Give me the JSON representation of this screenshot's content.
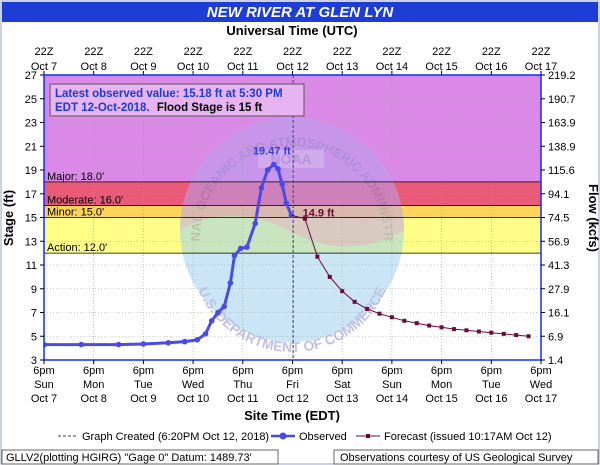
{
  "header": {
    "title": "NEW RIVER AT GLEN LYN",
    "top_axis_title": "Universal Time (UTC)"
  },
  "info_box": {
    "line1": "Latest observed value: 15.18 ft at 5:30 PM",
    "line2_date": "EDT 12-Oct-2018.",
    "line2_flood": "Flood Stage is 15 ft"
  },
  "axes": {
    "y_left_title": "Stage (ft)",
    "y_right_title": "Flow (kcfs)",
    "x_bottom_title": "Site Time (EDT)"
  },
  "footer": {
    "left": "GLLV2(plotting HGIRG) \"Gage 0\" Datum: 1489.73'",
    "right": "Observations courtesy of US Geological Survey"
  },
  "legend": {
    "graph_created": "Graph Created (6:20PM Oct 12, 2018)",
    "observed": "Observed",
    "forecast": "Forecast (issued 10:17AM Oct 12)"
  },
  "watermark": {
    "top_text": "NATIONAL OCEANIC AND ATMOSPHERIC ADMINISTRATION",
    "bottom_text": "U.S. DEPARTMENT OF COMMERCE",
    "center_text": "NOAA"
  },
  "colors": {
    "record_band": "#da8ae6",
    "major_band": "#e85a78",
    "moderate_band": "#ff7a4a",
    "minor_band": "#ffd45a",
    "action_band": "#ffff88",
    "observed": "#4a4ae8",
    "forecast": "#6a0a3a",
    "border": "#0f2cff",
    "title_bg": "#1e3cd6",
    "info_text": "#1a3cd6",
    "peak_label": "#3a3ae0",
    "forecast_label": "#6a0a3a"
  },
  "chart_data": {
    "type": "line",
    "title": "NEW RIVER AT GLEN LYN",
    "xlabel": "Site Time (EDT)",
    "ylabel": "Stage (ft)",
    "ylabel_right": "Flow (kcfs)",
    "ylim": [
      3,
      27
    ],
    "xlim": [
      "2018-10-07 18:00",
      "2018-10-17 18:00"
    ],
    "y_ticks": [
      3,
      5,
      7,
      9,
      11,
      13,
      15,
      17,
      19,
      21,
      23,
      25,
      27
    ],
    "y_right_ticks": [
      "1.4",
      "6.9",
      "16.1",
      "27.9",
      "41.3",
      "56.9",
      "74.5",
      "94.1",
      "115.6",
      "138.9",
      "163.9",
      "190.7",
      "219.2"
    ],
    "x_bottom_ticks": [
      {
        "t": "2018-10-07 18:00",
        "l1": "6pm",
        "l2": "Sun",
        "l3": "Oct 7"
      },
      {
        "t": "2018-10-08 18:00",
        "l1": "6pm",
        "l2": "Mon",
        "l3": "Oct 8"
      },
      {
        "t": "2018-10-09 18:00",
        "l1": "6pm",
        "l2": "Tue",
        "l3": "Oct 9"
      },
      {
        "t": "2018-10-10 18:00",
        "l1": "6pm",
        "l2": "Wed",
        "l3": "Oct 10"
      },
      {
        "t": "2018-10-11 18:00",
        "l1": "6pm",
        "l2": "Thu",
        "l3": "Oct 11"
      },
      {
        "t": "2018-10-12 18:00",
        "l1": "6pm",
        "l2": "Fri",
        "l3": "Oct 12"
      },
      {
        "t": "2018-10-13 18:00",
        "l1": "6pm",
        "l2": "Sat",
        "l3": "Oct 13"
      },
      {
        "t": "2018-10-14 18:00",
        "l1": "6pm",
        "l2": "Sun",
        "l3": "Oct 14"
      },
      {
        "t": "2018-10-15 18:00",
        "l1": "6pm",
        "l2": "Mon",
        "l3": "Oct 15"
      },
      {
        "t": "2018-10-16 18:00",
        "l1": "6pm",
        "l2": "Tue",
        "l3": "Oct 16"
      },
      {
        "t": "2018-10-17 18:00",
        "l1": "6pm",
        "l2": "Wed",
        "l3": "Oct 17"
      }
    ],
    "x_top_ticks": [
      {
        "t": "2018-10-07 18:00",
        "l1": "22Z",
        "l2": "Oct 7"
      },
      {
        "t": "2018-10-08 18:00",
        "l1": "22Z",
        "l2": "Oct 8"
      },
      {
        "t": "2018-10-09 18:00",
        "l1": "22Z",
        "l2": "Oct 9"
      },
      {
        "t": "2018-10-10 18:00",
        "l1": "22Z",
        "l2": "Oct 10"
      },
      {
        "t": "2018-10-11 18:00",
        "l1": "22Z",
        "l2": "Oct 11"
      },
      {
        "t": "2018-10-12 18:00",
        "l1": "22Z",
        "l2": "Oct 12"
      },
      {
        "t": "2018-10-13 18:00",
        "l1": "22Z",
        "l2": "Oct 13"
      },
      {
        "t": "2018-10-14 18:00",
        "l1": "22Z",
        "l2": "Oct 14"
      },
      {
        "t": "2018-10-15 18:00",
        "l1": "22Z",
        "l2": "Oct 15"
      },
      {
        "t": "2018-10-16 18:00",
        "l1": "22Z",
        "l2": "Oct 16"
      },
      {
        "t": "2018-10-17 18:00",
        "l1": "22Z",
        "l2": "Oct 17"
      }
    ],
    "thresholds": [
      {
        "name": "Major",
        "value": 18.0,
        "label": "Major: 18.0'"
      },
      {
        "name": "Moderate",
        "value": 16.0,
        "label": "Moderate: 16.0'"
      },
      {
        "name": "Minor",
        "value": 15.0,
        "label": "Minor: 15.0'"
      },
      {
        "name": "Action",
        "value": 12.0,
        "label": "Action: 12.0'"
      }
    ],
    "graph_created_time": "2018-10-12 18:20",
    "annotations": [
      {
        "label": "19.47 ft",
        "t": "2018-10-12 09:00",
        "y": 19.47,
        "series": "Observed"
      },
      {
        "label": "14.9 ft",
        "t": "2018-10-12 20:00",
        "y": 14.9,
        "series": "Forecast"
      }
    ],
    "series": [
      {
        "name": "Observed",
        "points": [
          {
            "t": "2018-10-07 18:00",
            "y": 4.3
          },
          {
            "t": "2018-10-08 12:00",
            "y": 4.3
          },
          {
            "t": "2018-10-09 06:00",
            "y": 4.3
          },
          {
            "t": "2018-10-09 18:00",
            "y": 4.35
          },
          {
            "t": "2018-10-10 06:00",
            "y": 4.45
          },
          {
            "t": "2018-10-10 14:00",
            "y": 4.55
          },
          {
            "t": "2018-10-10 20:00",
            "y": 4.7
          },
          {
            "t": "2018-10-11 00:00",
            "y": 5.2
          },
          {
            "t": "2018-10-11 03:00",
            "y": 6.3
          },
          {
            "t": "2018-10-11 06:00",
            "y": 7.0
          },
          {
            "t": "2018-10-11 09:00",
            "y": 7.5
          },
          {
            "t": "2018-10-11 12:00",
            "y": 9.5
          },
          {
            "t": "2018-10-11 14:00",
            "y": 11.8
          },
          {
            "t": "2018-10-11 17:00",
            "y": 12.4
          },
          {
            "t": "2018-10-11 20:00",
            "y": 12.5
          },
          {
            "t": "2018-10-12 00:00",
            "y": 14.5
          },
          {
            "t": "2018-10-12 03:00",
            "y": 17.5
          },
          {
            "t": "2018-10-12 06:00",
            "y": 19.0
          },
          {
            "t": "2018-10-12 09:00",
            "y": 19.47
          },
          {
            "t": "2018-10-12 11:00",
            "y": 19.1
          },
          {
            "t": "2018-10-12 13:00",
            "y": 17.8
          },
          {
            "t": "2018-10-12 15:00",
            "y": 16.2
          },
          {
            "t": "2018-10-12 17:30",
            "y": 15.18
          }
        ]
      },
      {
        "name": "Forecast",
        "points": [
          {
            "t": "2018-10-12 17:30",
            "y": 15.18
          },
          {
            "t": "2018-10-13 00:00",
            "y": 14.9
          },
          {
            "t": "2018-10-13 06:00",
            "y": 11.7
          },
          {
            "t": "2018-10-13 12:00",
            "y": 10.0
          },
          {
            "t": "2018-10-13 18:00",
            "y": 8.8
          },
          {
            "t": "2018-10-14 00:00",
            "y": 7.9
          },
          {
            "t": "2018-10-14 06:00",
            "y": 7.3
          },
          {
            "t": "2018-10-14 12:00",
            "y": 6.9
          },
          {
            "t": "2018-10-14 18:00",
            "y": 6.6
          },
          {
            "t": "2018-10-15 00:00",
            "y": 6.3
          },
          {
            "t": "2018-10-15 06:00",
            "y": 6.1
          },
          {
            "t": "2018-10-15 12:00",
            "y": 5.9
          },
          {
            "t": "2018-10-15 18:00",
            "y": 5.75
          },
          {
            "t": "2018-10-16 00:00",
            "y": 5.6
          },
          {
            "t": "2018-10-16 06:00",
            "y": 5.5
          },
          {
            "t": "2018-10-16 12:00",
            "y": 5.4
          },
          {
            "t": "2018-10-16 18:00",
            "y": 5.3
          },
          {
            "t": "2018-10-17 00:00",
            "y": 5.2
          },
          {
            "t": "2018-10-17 06:00",
            "y": 5.1
          },
          {
            "t": "2018-10-17 12:00",
            "y": 5.0
          }
        ]
      }
    ]
  }
}
